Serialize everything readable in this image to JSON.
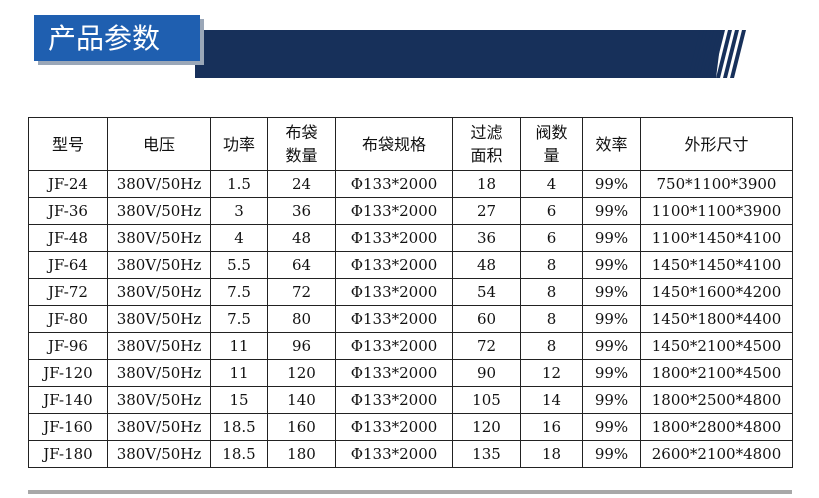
{
  "header": {
    "title": "产品参数"
  },
  "table": {
    "columns": [
      [
        "型号"
      ],
      [
        "电压"
      ],
      [
        "功率"
      ],
      [
        "布袋",
        "数量"
      ],
      [
        "布袋规格"
      ],
      [
        "过滤",
        "面积"
      ],
      [
        "阀数",
        "量"
      ],
      [
        "效率"
      ],
      [
        "外形尺寸"
      ]
    ],
    "rows": [
      [
        "JF-24",
        "380V/50Hz",
        "1.5",
        "24",
        "Φ133*2000",
        "18",
        "4",
        "99%",
        "750*1100*3900"
      ],
      [
        "JF-36",
        "380V/50Hz",
        "3",
        "36",
        "Φ133*2000",
        "27",
        "6",
        "99%",
        "1100*1100*3900"
      ],
      [
        "JF-48",
        "380V/50Hz",
        "4",
        "48",
        "Φ133*2000",
        "36",
        "6",
        "99%",
        "1100*1450*4100"
      ],
      [
        "JF-64",
        "380V/50Hz",
        "5.5",
        "64",
        "Φ133*2000",
        "48",
        "8",
        "99%",
        "1450*1450*4100"
      ],
      [
        "JF-72",
        "380V/50Hz",
        "7.5",
        "72",
        "Φ133*2000",
        "54",
        "8",
        "99%",
        "1450*1600*4200"
      ],
      [
        "JF-80",
        "380V/50Hz",
        "7.5",
        "80",
        "Φ133*2000",
        "60",
        "8",
        "99%",
        "1450*1800*4400"
      ],
      [
        "JF-96",
        "380V/50Hz",
        "11",
        "96",
        "Φ133*2000",
        "72",
        "8",
        "99%",
        "1450*2100*4500"
      ],
      [
        "JF-120",
        "380V/50Hz",
        "11",
        "120",
        "Φ133*2000",
        "90",
        "12",
        "99%",
        "1800*2100*4500"
      ],
      [
        "JF-140",
        "380V/50Hz",
        "15",
        "140",
        "Φ133*2000",
        "105",
        "14",
        "99%",
        "1800*2500*4800"
      ],
      [
        "JF-160",
        "380V/50Hz",
        "18.5",
        "160",
        "Φ133*2000",
        "120",
        "16",
        "99%",
        "1800*2800*4800"
      ],
      [
        "JF-180",
        "380V/50Hz",
        "18.5",
        "180",
        "Φ133*2000",
        "135",
        "18",
        "99%",
        "2600*2100*4800"
      ]
    ]
  }
}
